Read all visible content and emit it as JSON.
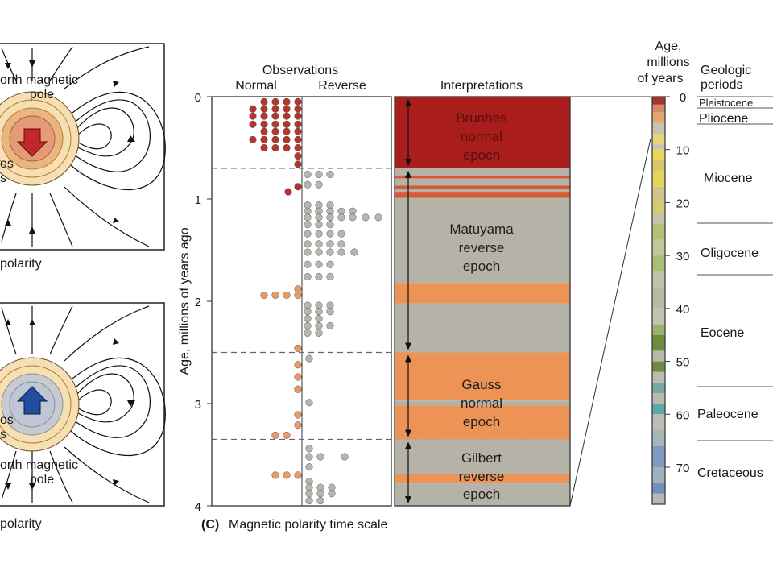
{
  "panels": {
    "normal_magnet": {
      "north_label": "orth magnetic",
      "pole_label": "pole",
      "side_label_1": "os",
      "side_label_2": "s",
      "caption": "polarity"
    },
    "reverse_magnet": {
      "north_label": "orth magnetic",
      "pole_label": "pole",
      "side_label_1": "os",
      "side_label_2": "s",
      "caption": "polarity"
    }
  },
  "observations": {
    "title": "Observations",
    "col_normal": "Normal",
    "col_reverse": "Reverse",
    "axis_label": "Age, millions of years ago",
    "ticks": [
      "0",
      "1",
      "2",
      "3",
      "4"
    ]
  },
  "interpretations": {
    "title": "Interpretations",
    "epochs": [
      {
        "line1": "Brunhes",
        "line2": "normal",
        "line3": "epoch",
        "start": 0.0,
        "end": 0.7
      },
      {
        "line1": "Matuyama",
        "line2": "reverse",
        "line3": "epoch",
        "start": 0.7,
        "end": 2.5
      },
      {
        "line1": "Gauss",
        "line2": "normal",
        "line3": "epoch",
        "start": 2.5,
        "end": 3.35
      },
      {
        "line1": "Gilbert",
        "line2": "reverse",
        "line3": "epoch",
        "start": 3.35,
        "end": 4.0
      }
    ]
  },
  "caption": {
    "prefix": "(C)",
    "text": "Magnetic polarity time scale"
  },
  "time_scale": {
    "age_header": "Age,",
    "age_header_2": "millions",
    "age_header_3": "of years",
    "periods_header": "Geologic",
    "periods_header_2": "periods",
    "ticks": [
      "0",
      "10",
      "20",
      "30",
      "40",
      "50",
      "60",
      "70"
    ],
    "periods": [
      "Pleistocene",
      "Pliocene",
      "Miocene",
      "Oligocene",
      "Eocene",
      "Paleocene",
      "Cretaceous"
    ]
  },
  "colors": {
    "normal_red": "#a91e1c",
    "normal_orange": "#ee9356",
    "reverse_gray": "#b5b3a8",
    "dot_red": "#b5362b",
    "dot_orange": "#ec9a64",
    "dot_gray": "#b6b6b0"
  }
}
